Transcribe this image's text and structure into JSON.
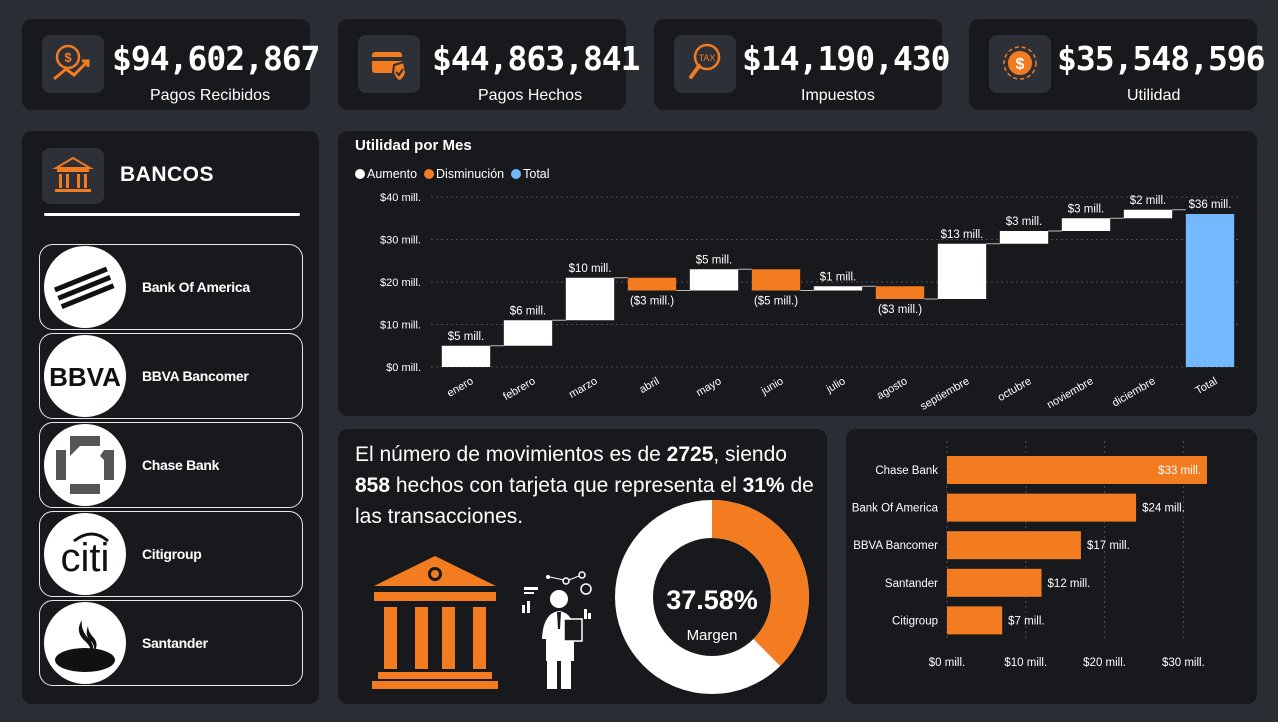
{
  "colors": {
    "accent": "#f37b20",
    "total": "#74b9ff",
    "increase": "#ffffff",
    "card": "#18191d",
    "bg": "#2a2d34"
  },
  "kpis": [
    {
      "value": "$94,602,867",
      "label": "Pagos Recibidos",
      "icon": "money-growth-icon"
    },
    {
      "value": "$44,863,841",
      "label": "Pagos Hechos",
      "icon": "card-check-icon"
    },
    {
      "value": "$14,190,430",
      "label": "Impuestos",
      "icon": "tax-magnifier-icon"
    },
    {
      "value": "$35,548,596",
      "label": "Utilidad",
      "icon": "dollar-coin-icon"
    }
  ],
  "banks": {
    "title": "BANCOS",
    "items": [
      {
        "name": "Bank Of America",
        "logo": "bank-of-america-logo"
      },
      {
        "name": "BBVA Bancomer",
        "logo": "bbva-logo"
      },
      {
        "name": "Chase Bank",
        "logo": "chase-logo"
      },
      {
        "name": "Citigroup",
        "logo": "citi-logo"
      },
      {
        "name": "Santander",
        "logo": "santander-logo"
      }
    ]
  },
  "waterfall": {
    "title": "Utilidad por Mes",
    "legend": [
      {
        "label": "Aumento",
        "color": "#ffffff"
      },
      {
        "label": "Disminución",
        "color": "#f37b20"
      },
      {
        "label": "Total",
        "color": "#74b9ff"
      }
    ],
    "y_ticks": [
      "$0 mill.",
      "$10 mill.",
      "$20 mill.",
      "$30 mill.",
      "$40 mill."
    ]
  },
  "movements": {
    "p1": "El número de movimientos es de ",
    "count": "2725",
    "p2": ", siendo ",
    "card_count": "858",
    "p3": " hechos con tarjeta que representa el ",
    "pct": "31%",
    "p4": " de las transacciones.",
    "donut_value": "37.58%",
    "donut_label": "Margen"
  },
  "chart_data": [
    {
      "type": "waterfall",
      "title": "Utilidad por Mes",
      "ylim": [
        0,
        40
      ],
      "y_ticks": [
        0,
        10,
        20,
        30,
        40
      ],
      "categories": [
        "enero",
        "febrero",
        "marzo",
        "abril",
        "mayo",
        "junio",
        "julio",
        "agosto",
        "septiembre",
        "octubre",
        "noviembre",
        "diciembre",
        "Total"
      ],
      "values": [
        5,
        6,
        10,
        -3,
        5,
        -5,
        1,
        -3,
        13,
        3,
        3,
        2,
        36
      ],
      "labels": [
        "$5 mill.",
        "$6 mill.",
        "$10 mill.",
        "($3 mill.)",
        "$5 mill.",
        "($5 mill.)",
        "$1 mill.",
        "($3 mill.)",
        "$13 mill.",
        "$3 mill.",
        "$3 mill.",
        "$2 mill.",
        "$36 mill."
      ],
      "kinds": [
        "inc",
        "inc",
        "inc",
        "dec",
        "inc",
        "dec",
        "inc",
        "dec",
        "inc",
        "inc",
        "inc",
        "inc",
        "total"
      ],
      "legend": [
        "Aumento",
        "Disminución",
        "Total"
      ],
      "legend_position": "top-left",
      "grid": true
    },
    {
      "type": "donut",
      "value": 37.58,
      "center_text": "37.58%",
      "center_label": "Margen"
    },
    {
      "type": "bar",
      "orientation": "horizontal",
      "categories": [
        "Chase Bank",
        "Bank Of America",
        "BBVA Bancomer",
        "Santander",
        "Citigroup"
      ],
      "values": [
        33,
        24,
        17,
        12,
        7
      ],
      "labels": [
        "$33 mill.",
        "$24 mill.",
        "$17 mill.",
        "$12 mill.",
        "$7 mill."
      ],
      "xlim": [
        0,
        33
      ],
      "x_ticks": [
        "$0 mill.",
        "$10 mill.",
        "$20 mill.",
        "$30 mill."
      ],
      "x_tick_values": [
        0,
        10,
        20,
        30
      ],
      "grid": true
    }
  ]
}
